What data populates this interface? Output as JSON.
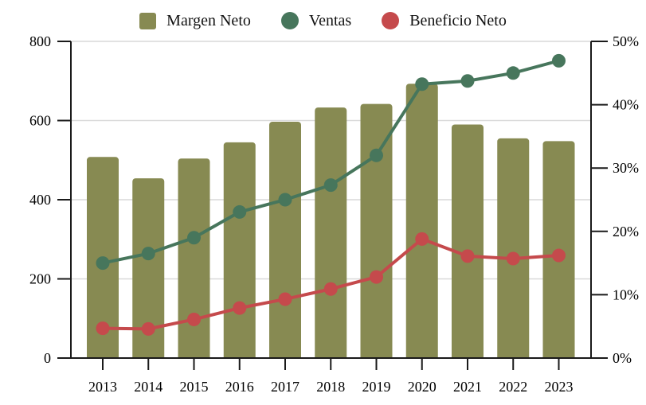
{
  "chart_data": {
    "type": "bar",
    "note": "combo chart: bars plus two marker lines, dual y-axis",
    "categories": [
      "2013",
      "2014",
      "2015",
      "2016",
      "2017",
      "2018",
      "2019",
      "2020",
      "2021",
      "2022",
      "2023"
    ],
    "series": [
      {
        "name": "Margen Neto",
        "kind": "bar",
        "axis": "left",
        "color": "#878a52",
        "values": [
          508,
          454,
          504,
          545,
          597,
          633,
          642,
          693,
          590,
          555,
          548
        ]
      },
      {
        "name": "Ventas",
        "kind": "line",
        "axis": "left",
        "color": "#47765c",
        "values": [
          240,
          264,
          304,
          369,
          400,
          437,
          512,
          692,
          700,
          720,
          751
        ]
      },
      {
        "name": "Beneficio Neto",
        "kind": "line",
        "axis": "right",
        "color": "#c54a4c",
        "values": [
          4.7,
          4.6,
          6.1,
          7.9,
          9.3,
          10.9,
          12.8,
          18.8,
          16.1,
          15.7,
          16.2
        ]
      }
    ],
    "left_axis": {
      "min": 0,
      "max": 800,
      "tick_values": [
        0,
        200,
        400,
        600,
        800
      ],
      "tick_labels": [
        "0",
        "200",
        "400",
        "600",
        "800"
      ]
    },
    "right_axis": {
      "min": 0,
      "max": 50,
      "tick_values": [
        0,
        10,
        20,
        30,
        40,
        50
      ],
      "tick_labels": [
        "0%",
        "10%",
        "20%",
        "30%",
        "40%",
        "50%"
      ]
    },
    "grid": "horizontal gray lines at left-axis ticks 200/400/600/800",
    "legend_position": "top",
    "colors": {
      "axis": "#1a1a1a",
      "gridline": "#d9d9d9",
      "background": "#ffffff"
    }
  }
}
